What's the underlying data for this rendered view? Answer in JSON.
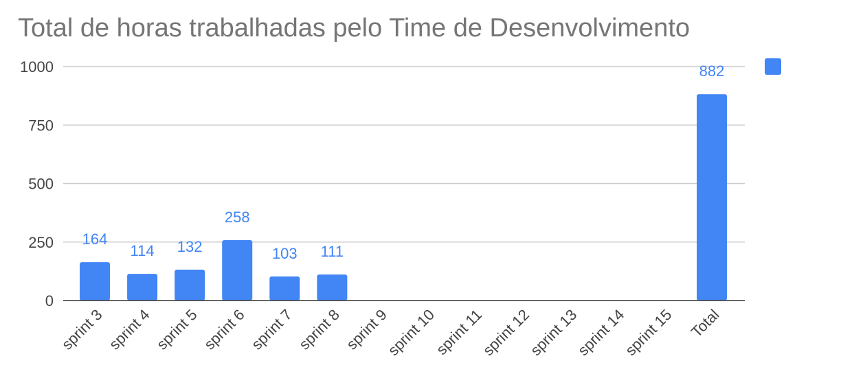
{
  "chart_data": {
    "type": "bar",
    "title": "Total de horas trabalhadas pelo Time de Desenvolvimento",
    "xlabel": "",
    "ylabel": "",
    "categories": [
      "sprint 3",
      "sprint 4",
      "sprint 5",
      "sprint 6",
      "sprint 7",
      "sprint 8",
      "sprint 9",
      "sprint 10",
      "sprint 11",
      "sprint 12",
      "sprint 13",
      "sprint 14",
      "sprint 15",
      "Total"
    ],
    "series": [
      {
        "values": [
          164,
          114,
          132,
          258,
          103,
          111,
          null,
          null,
          null,
          null,
          null,
          null,
          null,
          882
        ]
      }
    ],
    "data_labels": [
      "164",
      "114",
      "132",
      "258",
      "103",
      "111",
      "",
      "",
      "",
      "",
      "",
      "",
      "",
      "882"
    ],
    "ylim": [
      0,
      1000
    ],
    "yticks": [
      0,
      250,
      500,
      750,
      1000
    ],
    "ytick_labels": [
      "0",
      "250",
      "500",
      "750",
      "1000"
    ],
    "grid": true,
    "legend_position": "top-right",
    "bar_color": "#4285f4"
  }
}
